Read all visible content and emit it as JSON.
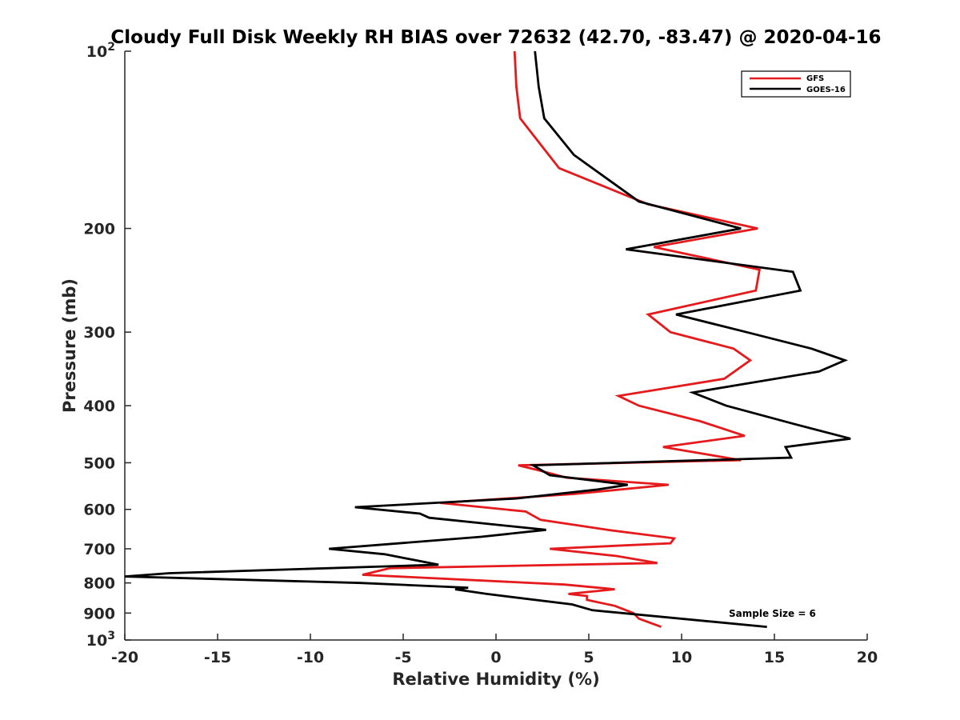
{
  "chart_data": {
    "type": "line",
    "title": "Cloudy Full Disk Weekly RH BIAS over 72632 (42.70, -83.47) @ 2020-04-16",
    "xlabel": "Relative Humidity (%)",
    "ylabel": "Pressure (mb)",
    "xlim": [
      -20,
      20
    ],
    "ylim": [
      100,
      1000
    ],
    "y_scale": "log",
    "y_reversed": true,
    "grid": false,
    "legend_position": "top-right",
    "x_ticks": [
      "-20",
      "-15",
      "-10",
      "-5",
      "0",
      "5",
      "10",
      "15",
      "20"
    ],
    "y_ticks": [
      {
        "value": 100,
        "base": "10",
        "exp": "2"
      },
      {
        "value": 200,
        "label": "200"
      },
      {
        "value": 300,
        "label": "300"
      },
      {
        "value": 400,
        "label": "400"
      },
      {
        "value": 500,
        "label": "500"
      },
      {
        "value": 600,
        "label": "600"
      },
      {
        "value": 700,
        "label": "700"
      },
      {
        "value": 800,
        "label": "800"
      },
      {
        "value": 900,
        "label": "900"
      },
      {
        "value": 1000,
        "base": "10",
        "exp": "3"
      }
    ],
    "annotation": "Sample Size = 6",
    "series": [
      {
        "name": "GFS",
        "color": "#e41a1c",
        "points": [
          [
            1.0,
            100
          ],
          [
            1.1,
            115
          ],
          [
            1.3,
            130
          ],
          [
            3.4,
            158
          ],
          [
            8.2,
            182
          ],
          [
            14.1,
            200
          ],
          [
            8.5,
            215
          ],
          [
            14.2,
            235
          ],
          [
            14.0,
            255
          ],
          [
            8.2,
            280
          ],
          [
            9.4,
            300
          ],
          [
            12.8,
            320
          ],
          [
            13.7,
            335
          ],
          [
            12.3,
            360
          ],
          [
            6.6,
            385
          ],
          [
            7.7,
            400
          ],
          [
            11.0,
            425
          ],
          [
            13.4,
            450
          ],
          [
            9.0,
            470
          ],
          [
            13.2,
            495
          ],
          [
            1.2,
            505
          ],
          [
            2.3,
            515
          ],
          [
            3.8,
            530
          ],
          [
            9.3,
            545
          ],
          [
            4.2,
            565
          ],
          [
            -3.0,
            585
          ],
          [
            1.6,
            605
          ],
          [
            2.4,
            625
          ],
          [
            6.0,
            650
          ],
          [
            9.6,
            672
          ],
          [
            9.4,
            685
          ],
          [
            2.9,
            700
          ],
          [
            6.5,
            720
          ],
          [
            8.7,
            740
          ],
          [
            -5.7,
            755
          ],
          [
            -7.2,
            775
          ],
          [
            3.7,
            805
          ],
          [
            6.4,
            820
          ],
          [
            3.9,
            835
          ],
          [
            4.9,
            842
          ],
          [
            4.9,
            855
          ],
          [
            6.4,
            875
          ],
          [
            7.4,
            900
          ],
          [
            7.7,
            920
          ],
          [
            8.9,
            950
          ]
        ]
      },
      {
        "name": "GOES-16",
        "color": "#000000",
        "points": [
          [
            2.1,
            100
          ],
          [
            2.3,
            115
          ],
          [
            2.6,
            130
          ],
          [
            4.2,
            150
          ],
          [
            7.7,
            180
          ],
          [
            13.2,
            200
          ],
          [
            7.0,
            217
          ],
          [
            16.0,
            237
          ],
          [
            16.4,
            255
          ],
          [
            9.7,
            280
          ],
          [
            13.5,
            300
          ],
          [
            17.0,
            320
          ],
          [
            18.8,
            335
          ],
          [
            17.4,
            350
          ],
          [
            10.6,
            380
          ],
          [
            12.4,
            400
          ],
          [
            16.1,
            430
          ],
          [
            19.1,
            455
          ],
          [
            15.6,
            470
          ],
          [
            15.9,
            490
          ],
          [
            2.0,
            505
          ],
          [
            2.9,
            525
          ],
          [
            7.1,
            545
          ],
          [
            5.5,
            555
          ],
          [
            1.1,
            575
          ],
          [
            -7.6,
            595
          ],
          [
            -4.1,
            610
          ],
          [
            -3.6,
            620
          ],
          [
            2.7,
            650
          ],
          [
            -0.8,
            668
          ],
          [
            -9.0,
            700
          ],
          [
            -6.0,
            715
          ],
          [
            -3.1,
            745
          ],
          [
            -17.6,
            770
          ],
          [
            -20.0,
            780
          ],
          [
            -7.3,
            800
          ],
          [
            -1.5,
            815
          ],
          [
            -2.2,
            820
          ],
          [
            -0.5,
            835
          ],
          [
            4.1,
            870
          ],
          [
            5.2,
            890
          ],
          [
            14.6,
            950
          ]
        ]
      }
    ]
  }
}
